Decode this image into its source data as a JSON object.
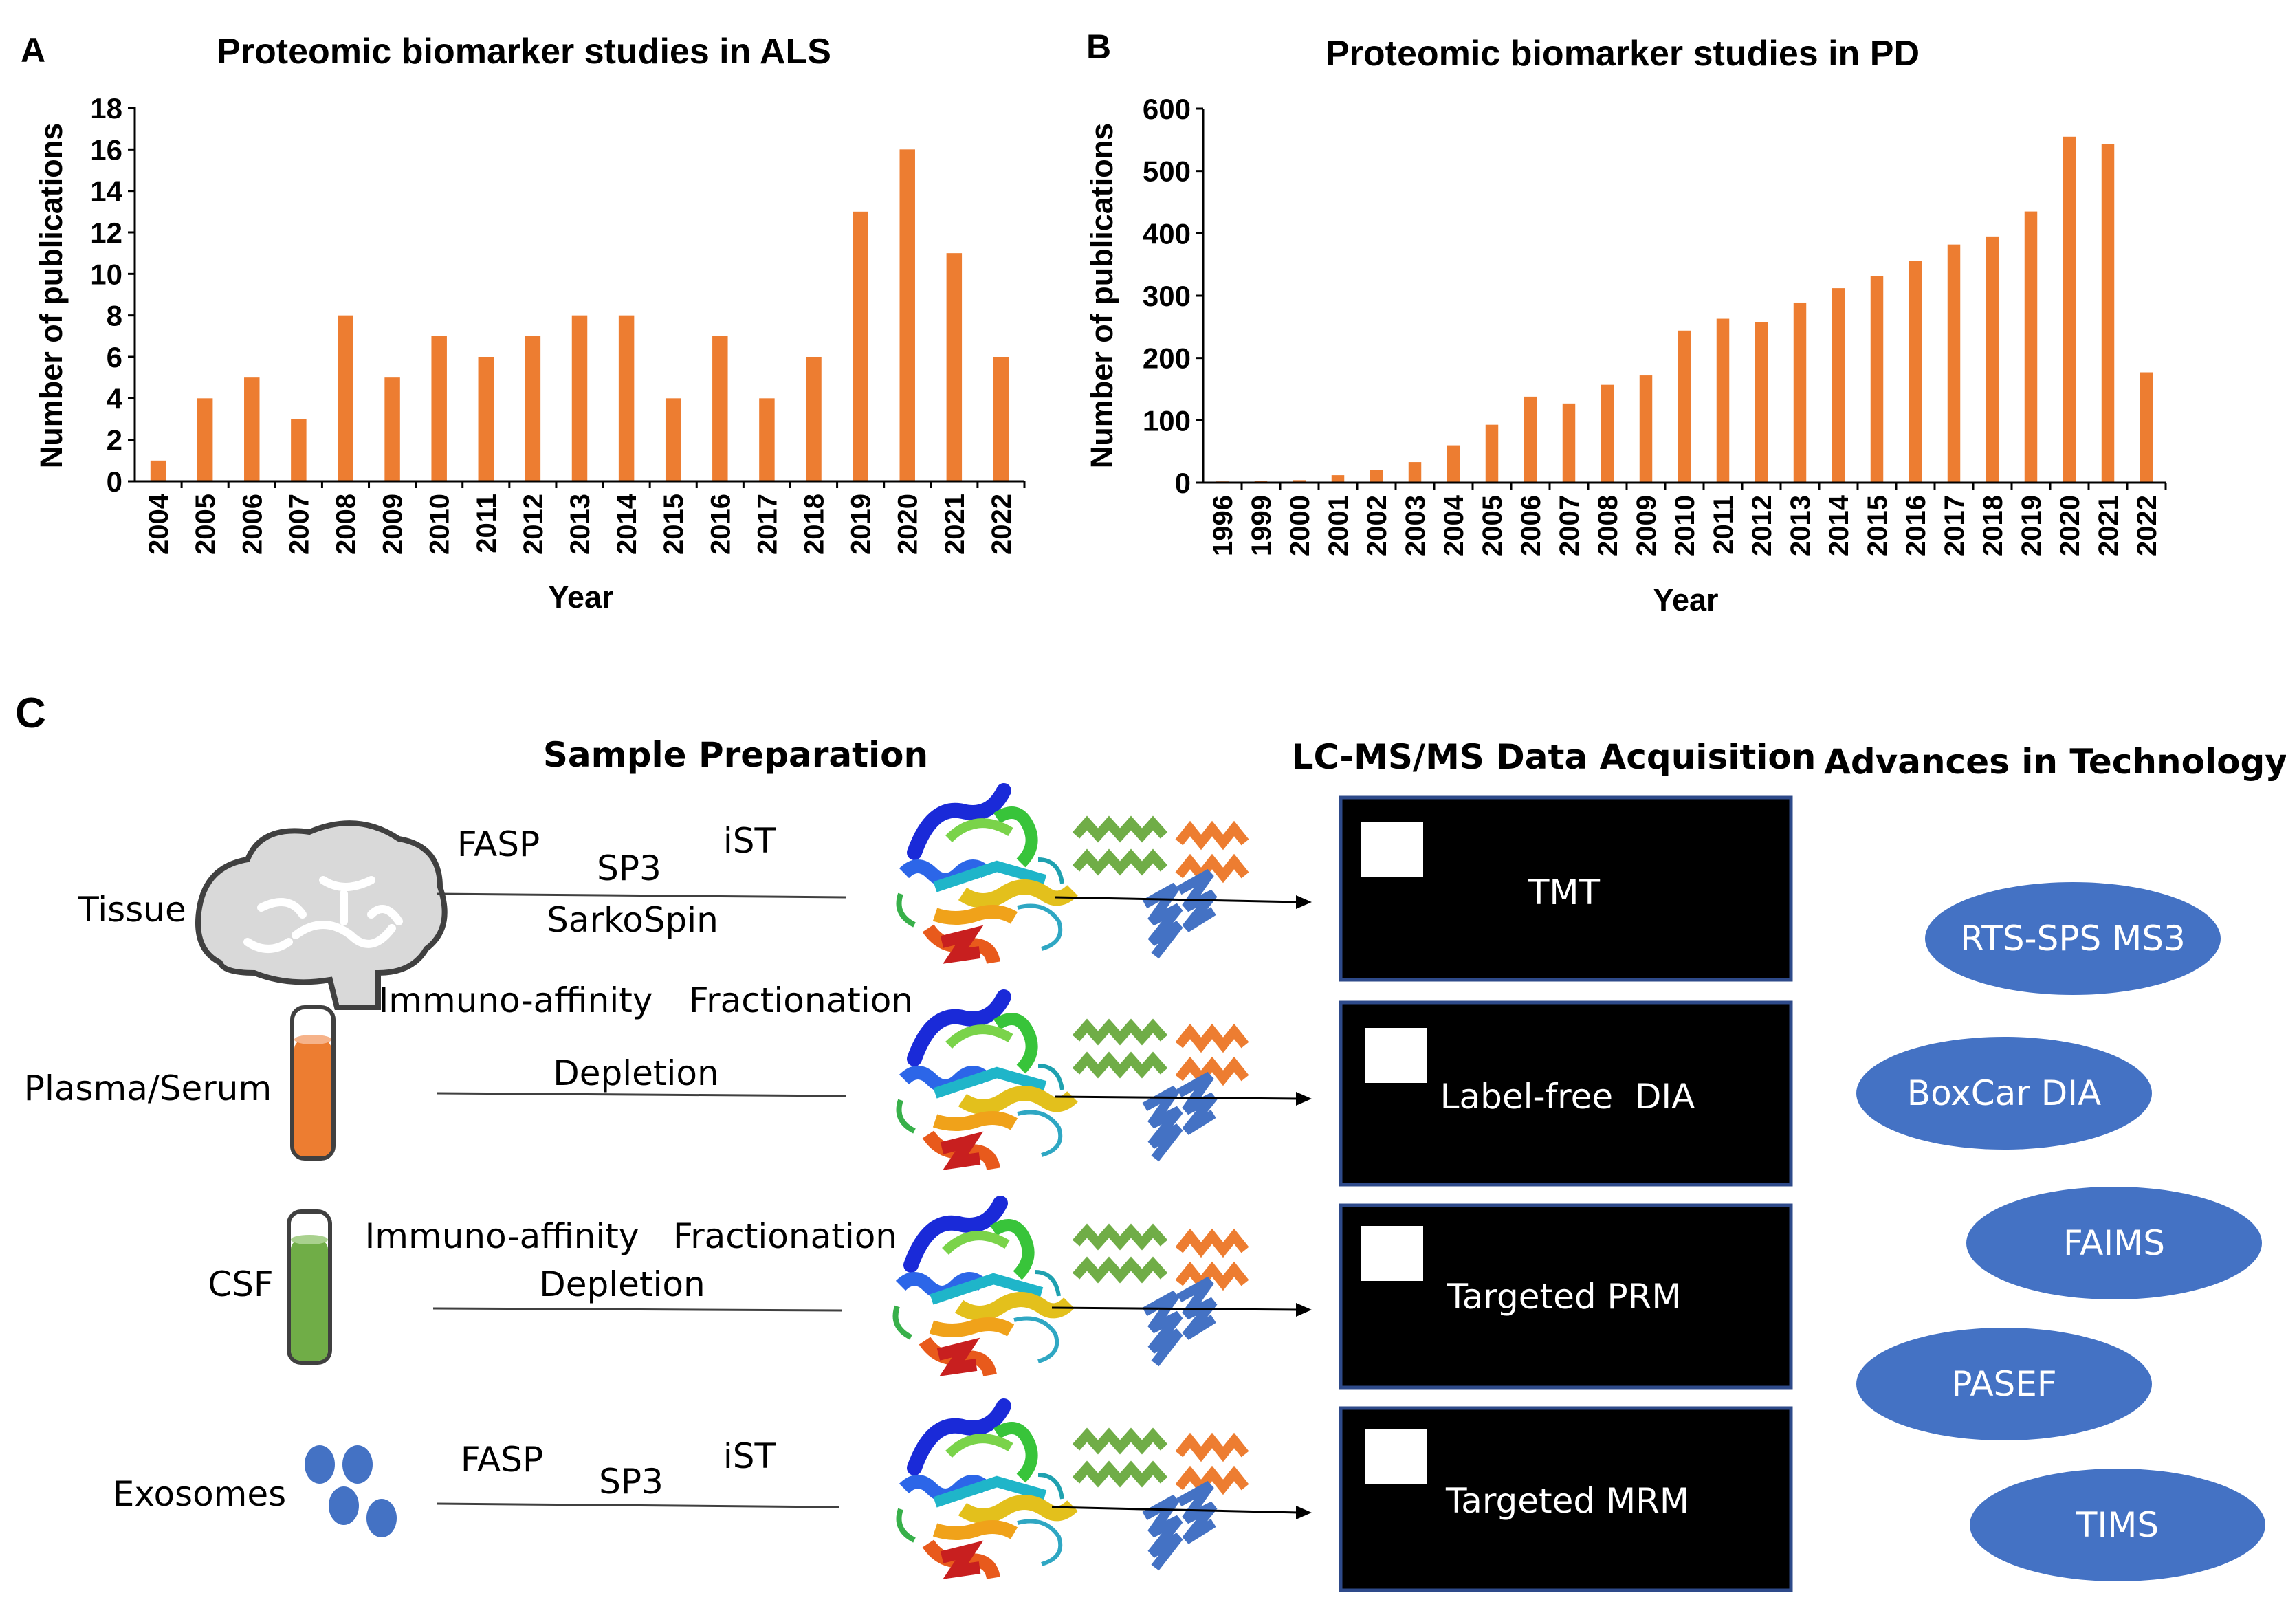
{
  "chart_data": [
    {
      "panel": "A",
      "type": "bar",
      "title": "Proteomic biomarker studies in ALS",
      "xlabel": "Year",
      "ylabel": "Number of publications",
      "ylim": [
        0,
        18
      ],
      "yticks": [
        "0",
        "2",
        "4",
        "6",
        "8",
        "10",
        "12",
        "14",
        "16",
        "18"
      ],
      "categories": [
        "2004",
        "2005",
        "2006",
        "2007",
        "2008",
        "2009",
        "2010",
        "2011",
        "2012",
        "2013",
        "2014",
        "2015",
        "2016",
        "2017",
        "2018",
        "2019",
        "2020",
        "2021",
        "2022"
      ],
      "values": [
        1,
        4,
        5,
        3,
        8,
        5,
        7,
        6,
        7,
        8,
        8,
        4,
        7,
        4,
        6,
        13,
        16,
        11,
        6
      ],
      "bar_color": "#ED7D31",
      "grid": false
    },
    {
      "panel": "B",
      "type": "bar",
      "title": "Proteomic biomarker studies in PD",
      "xlabel": "Year",
      "ylabel": "Number of publications",
      "ylim": [
        0,
        600
      ],
      "yticks": [
        "0",
        "100",
        "200",
        "300",
        "400",
        "500",
        "600"
      ],
      "categories": [
        "1996",
        "1999",
        "2000",
        "2001",
        "2002",
        "2003",
        "2004",
        "2005",
        "2006",
        "2007",
        "2008",
        "2009",
        "2010",
        "2011",
        "2012",
        "2013",
        "2014",
        "2015",
        "2016",
        "2017",
        "2018",
        "2019",
        "2020",
        "2021",
        "2022"
      ],
      "values": [
        2,
        3,
        4,
        12,
        20,
        33,
        60,
        93,
        138,
        127,
        157,
        172,
        244,
        263,
        258,
        289,
        312,
        331,
        356,
        382,
        395,
        435,
        555,
        543,
        177
      ],
      "bar_color": "#ED7D31",
      "grid": false
    }
  ],
  "panel_c": {
    "label": "C",
    "headers": {
      "sample_prep": "Sample Preparation",
      "lcms": "LC-MS/MS Data Acquisition",
      "advances": "Advances in Technology"
    },
    "rows": [
      {
        "sample": "Tissue",
        "methods": [
          "FASP",
          "SP3",
          "iST",
          "SarkoSpin"
        ],
        "acquisition": "TMT"
      },
      {
        "sample": "Plasma/Serum",
        "methods": [
          "Immuno-affinity",
          "Fractionation",
          "Depletion"
        ],
        "acquisition": "Label-free  DIA"
      },
      {
        "sample": "CSF",
        "methods": [
          "Immuno-affinity",
          "Fractionation",
          "Depletion"
        ],
        "acquisition": "Targeted PRM"
      },
      {
        "sample": "Exosomes",
        "methods": [
          "FASP",
          "SP3",
          "iST"
        ],
        "acquisition": "Targeted MRM"
      }
    ],
    "technologies": [
      "RTS-SPS MS3",
      "BoxCar DIA",
      "FAIMS",
      "PASEF",
      "TIMS"
    ],
    "colors": {
      "tech_ellipse": "#4472C4",
      "plasma_fill": "#ED7D31",
      "csf_fill": "#70AD47",
      "exosome_fill": "#4472C4",
      "peptide_green": "#70AD47",
      "peptide_orange": "#ED7D31",
      "peptide_blue": "#4472C4"
    }
  }
}
